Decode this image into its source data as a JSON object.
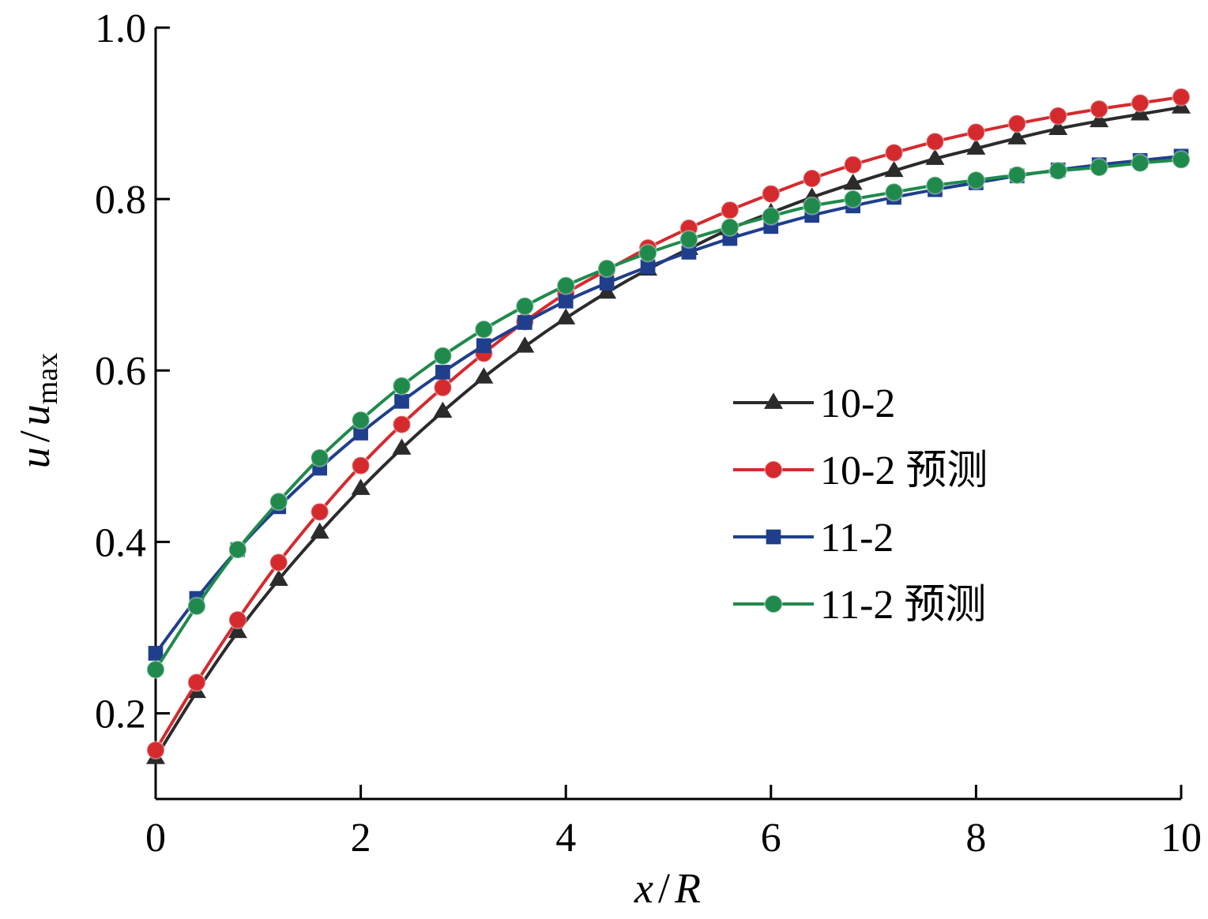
{
  "chart_data": {
    "type": "line",
    "xlabel": {
      "x": "x",
      "slash": "/",
      "r": "R"
    },
    "ylabel": {
      "u": "u",
      "slash": "/",
      "u2": "u",
      "sub": "max"
    },
    "xlim": [
      0,
      10
    ],
    "ylim": [
      0.1,
      1.0
    ],
    "x_ticks": [
      0,
      2,
      4,
      6,
      8,
      10
    ],
    "x_tick_labels": [
      "0",
      "2",
      "4",
      "6",
      "8",
      "10"
    ],
    "y_ticks": [
      0.2,
      0.4,
      0.6,
      0.8,
      1.0
    ],
    "y_tick_labels": [
      "0.2",
      "0.4",
      "0.6",
      "0.8",
      "1.0"
    ],
    "grid": false,
    "legend_position": "right-middle",
    "x": [
      0,
      0.4,
      0.8,
      1.2,
      1.6,
      2.0,
      2.4,
      2.8,
      3.2,
      3.6,
      4.0,
      4.4,
      4.8,
      5.2,
      5.6,
      6.0,
      6.4,
      6.8,
      7.2,
      7.6,
      8.0,
      8.4,
      8.8,
      9.2,
      9.6,
      10.0
    ],
    "series": [
      {
        "name": "10-2",
        "color": "#2b2b2b",
        "marker": "triangle",
        "values": [
          0.148,
          0.225,
          0.295,
          0.356,
          0.411,
          0.462,
          0.509,
          0.552,
          0.592,
          0.628,
          0.661,
          0.691,
          0.718,
          0.742,
          0.765,
          0.784,
          0.802,
          0.818,
          0.833,
          0.847,
          0.859,
          0.871,
          0.882,
          0.891,
          0.899,
          0.907
        ]
      },
      {
        "name": "10-2 预测",
        "color": "#d42a2e",
        "marker": "circle",
        "values": [
          0.157,
          0.236,
          0.309,
          0.376,
          0.435,
          0.489,
          0.537,
          0.58,
          0.62,
          0.657,
          0.69,
          0.717,
          0.743,
          0.766,
          0.787,
          0.806,
          0.824,
          0.84,
          0.854,
          0.867,
          0.878,
          0.888,
          0.897,
          0.905,
          0.912,
          0.919
        ]
      },
      {
        "name": "11-2",
        "color": "#1f3f8c",
        "marker": "square",
        "values": [
          0.27,
          0.334,
          0.391,
          0.441,
          0.486,
          0.527,
          0.564,
          0.598,
          0.629,
          0.656,
          0.681,
          0.702,
          0.721,
          0.738,
          0.754,
          0.768,
          0.781,
          0.792,
          0.802,
          0.811,
          0.819,
          0.827,
          0.834,
          0.84,
          0.845,
          0.85
        ]
      },
      {
        "name": "11-2 预测",
        "color": "#1f8a4c",
        "marker": "circle",
        "values": [
          0.251,
          0.325,
          0.391,
          0.447,
          0.498,
          0.542,
          0.582,
          0.617,
          0.648,
          0.675,
          0.699,
          0.719,
          0.737,
          0.753,
          0.767,
          0.78,
          0.792,
          0.8,
          0.808,
          0.816,
          0.822,
          0.828,
          0.833,
          0.837,
          0.842,
          0.846
        ]
      }
    ]
  }
}
